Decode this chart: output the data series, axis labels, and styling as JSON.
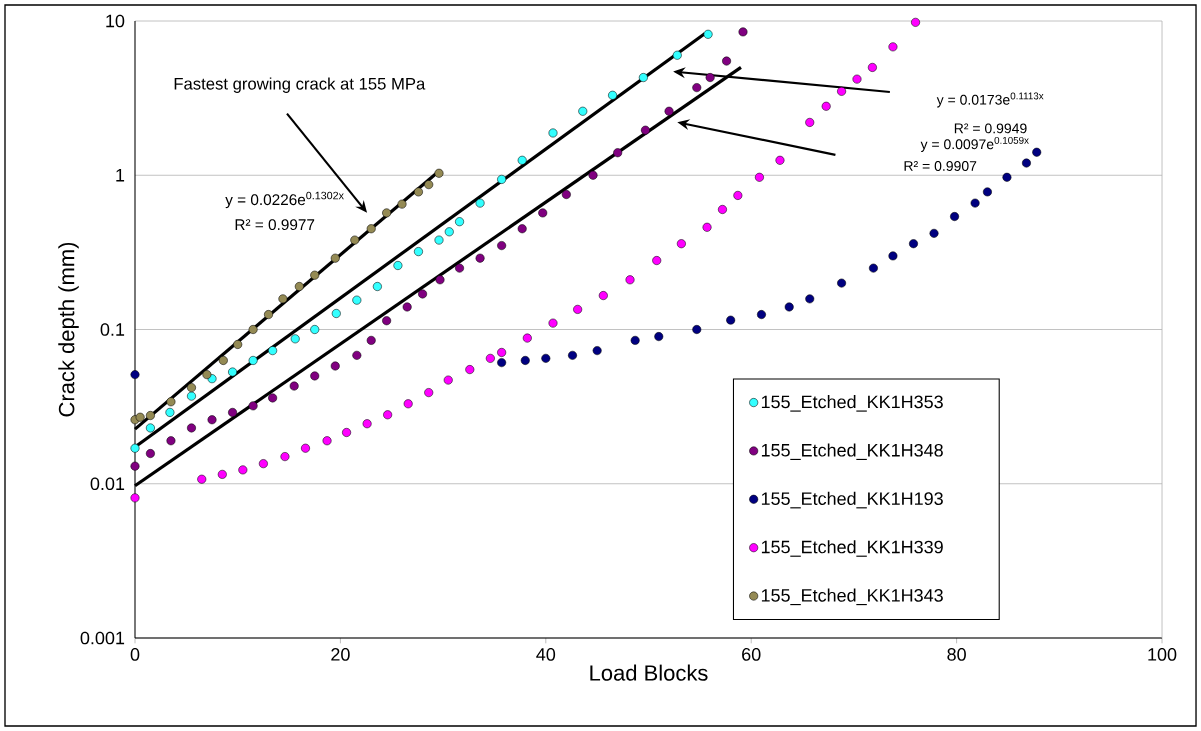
{
  "chart_data": {
    "type": "scatter",
    "xlabel": "Load Blocks",
    "ylabel": "Crack depth (mm)",
    "xlim": [
      0,
      100
    ],
    "xticks": [
      0,
      20,
      40,
      60,
      80,
      100
    ],
    "ylim": [
      0.001,
      10
    ],
    "yticks": [
      0.001,
      0.01,
      0.1,
      1,
      10
    ],
    "log": "y",
    "grid": "y",
    "legend": "bottom right",
    "marker": "circle",
    "series": [
      {
        "name": "155_Etched_KK1H353",
        "color": "#33ffff",
        "x": [
          0,
          1.5,
          3.4,
          5.5,
          7.5,
          9.5,
          11.5,
          13.4,
          15.6,
          17.5,
          19.6,
          21.6,
          23.6,
          25.6,
          27.6,
          29.6,
          30.6,
          31.6,
          33.6,
          35.7,
          37.7,
          40.7,
          43.6,
          46.5,
          49.5,
          52.8,
          55.8
        ],
        "values": [
          0.017,
          0.023,
          0.029,
          0.037,
          0.048,
          0.053,
          0.063,
          0.073,
          0.087,
          0.1,
          0.127,
          0.155,
          0.19,
          0.26,
          0.32,
          0.38,
          0.43,
          0.5,
          0.66,
          0.94,
          1.25,
          1.88,
          2.6,
          3.3,
          4.3,
          6.0,
          8.2
        ]
      },
      {
        "name": "155_Etched_KK1H348",
        "color": "#800080",
        "x": [
          0,
          1.5,
          3.5,
          5.5,
          7.5,
          9.5,
          11.5,
          13.4,
          15.5,
          17.5,
          19.5,
          21.6,
          23,
          24.5,
          26.5,
          28,
          29.7,
          31.6,
          33.6,
          35.7,
          37.7,
          39.7,
          42,
          44.6,
          47,
          49.7,
          52,
          54.7,
          56,
          57.6,
          59.2
        ],
        "values": [
          0.013,
          0.0157,
          0.019,
          0.023,
          0.026,
          0.029,
          0.032,
          0.036,
          0.043,
          0.05,
          0.058,
          0.068,
          0.085,
          0.114,
          0.14,
          0.17,
          0.21,
          0.25,
          0.29,
          0.35,
          0.45,
          0.57,
          0.75,
          1.0,
          1.4,
          1.96,
          2.6,
          3.7,
          4.3,
          5.5,
          8.5
        ]
      },
      {
        "name": "155_Etched_KK1H193",
        "color": "#000080",
        "x": [
          0,
          35.7,
          38,
          40,
          42.6,
          45,
          48.7,
          51,
          54.7,
          58,
          61,
          63.7,
          65.7,
          68.8,
          71.9,
          73.8,
          75.8,
          77.8,
          79.8,
          81.8,
          83,
          84.9,
          86.8,
          87.8
        ],
        "values": [
          0.051,
          0.061,
          0.063,
          0.065,
          0.068,
          0.073,
          0.085,
          0.09,
          0.1,
          0.115,
          0.125,
          0.14,
          0.158,
          0.2,
          0.25,
          0.3,
          0.36,
          0.42,
          0.54,
          0.66,
          0.78,
          0.97,
          1.2,
          1.41
        ]
      },
      {
        "name": "155_Etched_KK1H339",
        "color": "#ff00ff",
        "x": [
          0,
          6.5,
          8.5,
          10.5,
          12.5,
          14.6,
          16.6,
          18.7,
          20.6,
          22.6,
          24.6,
          26.6,
          28.6,
          30.5,
          32.6,
          34.6,
          35.7,
          38.2,
          40.7,
          43.1,
          45.6,
          48.2,
          50.8,
          53.2,
          55.7,
          57.2,
          58.7,
          60.8,
          62.8,
          65.7,
          67.3,
          68.8,
          70.3,
          71.8,
          73.8,
          76
        ],
        "values": [
          0.0081,
          0.0107,
          0.0115,
          0.0123,
          0.0135,
          0.015,
          0.017,
          0.019,
          0.0215,
          0.0245,
          0.028,
          0.033,
          0.039,
          0.047,
          0.055,
          0.065,
          0.071,
          0.088,
          0.11,
          0.135,
          0.166,
          0.21,
          0.28,
          0.36,
          0.46,
          0.6,
          0.74,
          0.97,
          1.25,
          2.2,
          2.8,
          3.5,
          4.2,
          5.0,
          6.8,
          9.8
        ]
      },
      {
        "name": "155_Etched_KK1H343",
        "color": "#948a54",
        "x": [
          0,
          0.5,
          1.5,
          3.5,
          5.5,
          7,
          8.6,
          10,
          11.5,
          13,
          14.4,
          16,
          17.5,
          19.5,
          21.4,
          23,
          24.5,
          26,
          27.6,
          28.6,
          29.6
        ],
        "values": [
          0.026,
          0.027,
          0.0277,
          0.034,
          0.042,
          0.051,
          0.063,
          0.08,
          0.1,
          0.125,
          0.158,
          0.19,
          0.225,
          0.29,
          0.38,
          0.45,
          0.57,
          0.65,
          0.78,
          0.87,
          1.03
        ]
      },
      {
        "type": "line",
        "marker": "none",
        "color": "#000000",
        "x": [
          0,
          29.5
        ],
        "values": [
          0.0226,
          1.05
        ]
      },
      {
        "type": "line",
        "marker": "none",
        "color": "#000000",
        "x": [
          0,
          55.5
        ],
        "values": [
          0.0173,
          8.3
        ]
      },
      {
        "type": "line",
        "marker": "none",
        "color": "#000000",
        "x": [
          0,
          59
        ],
        "values": [
          0.0097,
          5.0
        ]
      }
    ],
    "annotations": [
      "Fastest growing crack at 155 MPa",
      "y = 0.0226e$^{0.1302x}$",
      "R² = 0.9977",
      "y = 0.0173e$^{0.1113x}$",
      "R² = 0.9949",
      "y = 0.0097e$^{0.1059x}$",
      "R² = 0.9907"
    ]
  }
}
